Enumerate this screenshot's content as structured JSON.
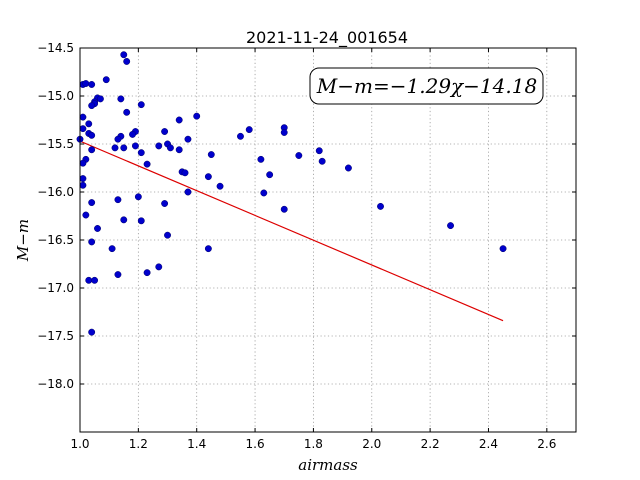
{
  "chart_data": {
    "type": "scatter",
    "title": "2021-11-24_001654",
    "xlabel": "airmass",
    "ylabel": "M−m",
    "xlim": [
      1.0,
      2.7
    ],
    "ylim": [
      -18.5,
      -14.5
    ],
    "y_inverted": true,
    "grid": true,
    "x_ticks": [
      1.0,
      1.2,
      1.4,
      1.6,
      1.8,
      2.0,
      2.2,
      2.4,
      2.6
    ],
    "x_tick_labels": [
      "1.0",
      "1.2",
      "1.4",
      "1.6",
      "1.8",
      "2.0",
      "2.2",
      "2.4",
      "2.6"
    ],
    "y_ticks": [
      -18.0,
      -17.5,
      -17.0,
      -16.5,
      -16.0,
      -15.5,
      -15.0,
      -14.5
    ],
    "y_tick_labels": [
      "−18.0",
      "−17.5",
      "−17.0",
      "−16.5",
      "−16.0",
      "−15.5",
      "−15.0",
      "−14.5"
    ],
    "annotation": "M−m=−1.29χ−14.18",
    "point_color": "#0000cc",
    "fit_color": "#dd0000",
    "fit_line": {
      "slope": -1.29,
      "intercept": -14.18,
      "x_range": [
        1.0,
        2.45
      ]
    },
    "points": [
      [
        1.01,
        -14.88
      ],
      [
        1.02,
        -14.87
      ],
      [
        1.04,
        -14.88
      ],
      [
        1.09,
        -14.83
      ],
      [
        1.06,
        -15.02
      ],
      [
        1.07,
        -15.03
      ],
      [
        1.05,
        -15.06
      ],
      [
        1.05,
        -15.08
      ],
      [
        1.04,
        -15.1
      ],
      [
        1.01,
        -15.22
      ],
      [
        1.03,
        -15.29
      ],
      [
        1.01,
        -15.34
      ],
      [
        1.03,
        -15.39
      ],
      [
        1.04,
        -15.41
      ],
      [
        1.0,
        -15.45
      ],
      [
        1.04,
        -15.56
      ],
      [
        1.02,
        -15.66
      ],
      [
        1.01,
        -15.7
      ],
      [
        1.01,
        -15.86
      ],
      [
        1.01,
        -15.93
      ],
      [
        1.04,
        -16.11
      ],
      [
        1.02,
        -16.24
      ],
      [
        1.06,
        -16.38
      ],
      [
        1.04,
        -16.52
      ],
      [
        1.11,
        -16.59
      ],
      [
        1.03,
        -16.92
      ],
      [
        1.05,
        -16.92
      ],
      [
        1.04,
        -17.46
      ],
      [
        1.15,
        -14.57
      ],
      [
        1.16,
        -14.64
      ],
      [
        1.14,
        -15.03
      ],
      [
        1.21,
        -15.09
      ],
      [
        1.16,
        -15.17
      ],
      [
        1.19,
        -15.37
      ],
      [
        1.18,
        -15.4
      ],
      [
        1.14,
        -15.42
      ],
      [
        1.13,
        -15.45
      ],
      [
        1.12,
        -15.54
      ],
      [
        1.15,
        -15.54
      ],
      [
        1.19,
        -15.52
      ],
      [
        1.21,
        -15.59
      ],
      [
        1.23,
        -15.71
      ],
      [
        1.13,
        -16.08
      ],
      [
        1.2,
        -16.05
      ],
      [
        1.15,
        -16.29
      ],
      [
        1.21,
        -16.3
      ],
      [
        1.13,
        -16.86
      ],
      [
        1.23,
        -16.84
      ],
      [
        1.27,
        -16.78
      ],
      [
        1.3,
        -16.45
      ],
      [
        1.29,
        -16.12
      ],
      [
        1.34,
        -15.25
      ],
      [
        1.29,
        -15.37
      ],
      [
        1.27,
        -15.52
      ],
      [
        1.3,
        -15.5
      ],
      [
        1.31,
        -15.54
      ],
      [
        1.34,
        -15.56
      ],
      [
        1.35,
        -15.79
      ],
      [
        1.36,
        -15.8
      ],
      [
        1.37,
        -15.45
      ],
      [
        1.4,
        -15.21
      ],
      [
        1.37,
        -16.0
      ],
      [
        1.44,
        -15.84
      ],
      [
        1.45,
        -15.61
      ],
      [
        1.48,
        -15.94
      ],
      [
        1.44,
        -16.59
      ],
      [
        1.55,
        -15.42
      ],
      [
        1.58,
        -15.35
      ],
      [
        1.62,
        -15.66
      ],
      [
        1.63,
        -16.01
      ],
      [
        1.65,
        -15.82
      ],
      [
        1.7,
        -15.33
      ],
      [
        1.7,
        -15.38
      ],
      [
        1.7,
        -16.18
      ],
      [
        1.75,
        -15.62
      ],
      [
        1.82,
        -15.57
      ],
      [
        1.83,
        -15.68
      ],
      [
        1.92,
        -15.75
      ],
      [
        2.03,
        -16.15
      ],
      [
        2.27,
        -16.35
      ],
      [
        2.45,
        -16.59
      ]
    ]
  }
}
